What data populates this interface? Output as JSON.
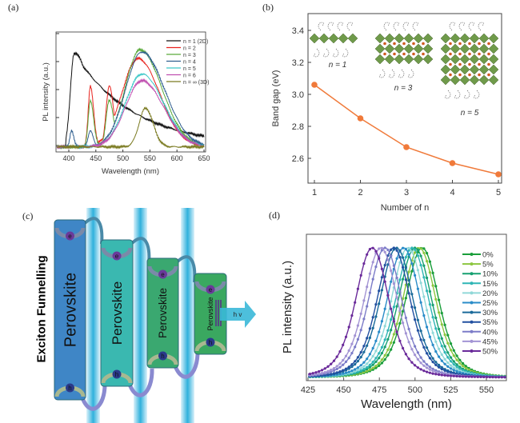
{
  "panels": {
    "a": "(a)",
    "b": "(b)",
    "c": "(c)",
    "d": "(d)"
  },
  "chart_data": [
    {
      "type": "line",
      "panel": "a",
      "xlabel": "Wavelength (nm)",
      "ylabel": "PL intensity (a.u.)",
      "yscale": "log",
      "xlim": [
        375,
        660
      ],
      "xticks": [
        400,
        450,
        500,
        550,
        600,
        650
      ],
      "series": [
        {
          "name": "n = 1 (2D)",
          "color": "#111111",
          "peaks": [
            [
              410,
              0.85,
              7,
              30
            ]
          ],
          "tail": true
        },
        {
          "name": "n = 2",
          "color": "#e8231e",
          "peaks": [
            [
              440,
              0.55,
              4,
              6
            ],
            [
              475,
              0.55,
              6,
              8
            ],
            [
              528,
              0.8,
              30,
              40
            ]
          ]
        },
        {
          "name": "n = 3",
          "color": "#5aaa3a",
          "peaks": [
            [
              440,
              0.42,
              4,
              6
            ],
            [
              475,
              0.42,
              6,
              8
            ],
            [
              532,
              0.88,
              28,
              40
            ]
          ]
        },
        {
          "name": "n = 4",
          "color": "#2f5f8f",
          "peaks": [
            [
              405,
              0.15,
              3,
              4
            ],
            [
              440,
              0.15,
              4,
              5
            ],
            [
              535,
              0.86,
              30,
              42
            ]
          ]
        },
        {
          "name": "n = 5",
          "color": "#3cc8c8",
          "peaks": [
            [
              535,
              0.66,
              30,
              40
            ]
          ]
        },
        {
          "name": "n = 6",
          "color": "#c050b0",
          "peaks": [
            [
              535,
              0.6,
              30,
              40
            ]
          ]
        },
        {
          "name": "n = ∞ (3D)",
          "color": "#7a7a20",
          "peaks": [
            [
              542,
              0.35,
              12,
              14
            ]
          ]
        }
      ]
    },
    {
      "type": "line",
      "panel": "b",
      "xlabel": "Number of n",
      "ylabel": "Band gap (eV)",
      "x": [
        1,
        2,
        3,
        4,
        5
      ],
      "y": [
        3.06,
        2.85,
        2.67,
        2.57,
        2.5
      ],
      "xticks": [
        "1",
        "2",
        "3",
        "4",
        "5"
      ],
      "yticks": [
        "2.6",
        "2.8",
        "3.0",
        "3.2",
        "3.4"
      ],
      "ylim": [
        2.445,
        3.505
      ],
      "color": "#f07a3a",
      "annotations": [
        "n = 1",
        "n = 3",
        "n = 5"
      ]
    },
    {
      "type": "line",
      "panel": "d",
      "xlabel": "Wavelength (nm)",
      "ylabel": "PL intensity (a.u.)",
      "xlim": [
        424,
        564
      ],
      "xticks": [
        "425",
        "450",
        "475",
        "500",
        "525",
        "550"
      ],
      "series": [
        {
          "name": "0%",
          "peak": 505,
          "color": "#1a9e3a"
        },
        {
          "name": "5%",
          "peak": 503,
          "color": "#8cc63f"
        },
        {
          "name": "10%",
          "peak": 500,
          "color": "#16a070"
        },
        {
          "name": "15%",
          "peak": 498,
          "color": "#2fb5b5"
        },
        {
          "name": "20%",
          "peak": 495,
          "color": "#90d8d8"
        },
        {
          "name": "25%",
          "peak": 492,
          "color": "#2a8cc8"
        },
        {
          "name": "30%",
          "peak": 487,
          "color": "#1a6a9a"
        },
        {
          "name": "35%",
          "peak": 485,
          "color": "#2250a0"
        },
        {
          "name": "40%",
          "peak": 479,
          "color": "#7c7cc8"
        },
        {
          "name": "45%",
          "peak": 476,
          "color": "#a394d4"
        },
        {
          "name": "50%",
          "peak": 470,
          "color": "#6a2a9a"
        }
      ]
    }
  ],
  "diagram": {
    "title": "Exciton  Funnelling",
    "block_label": "Perovskite",
    "electron": "e",
    "hole": "h",
    "emission": "h v"
  }
}
